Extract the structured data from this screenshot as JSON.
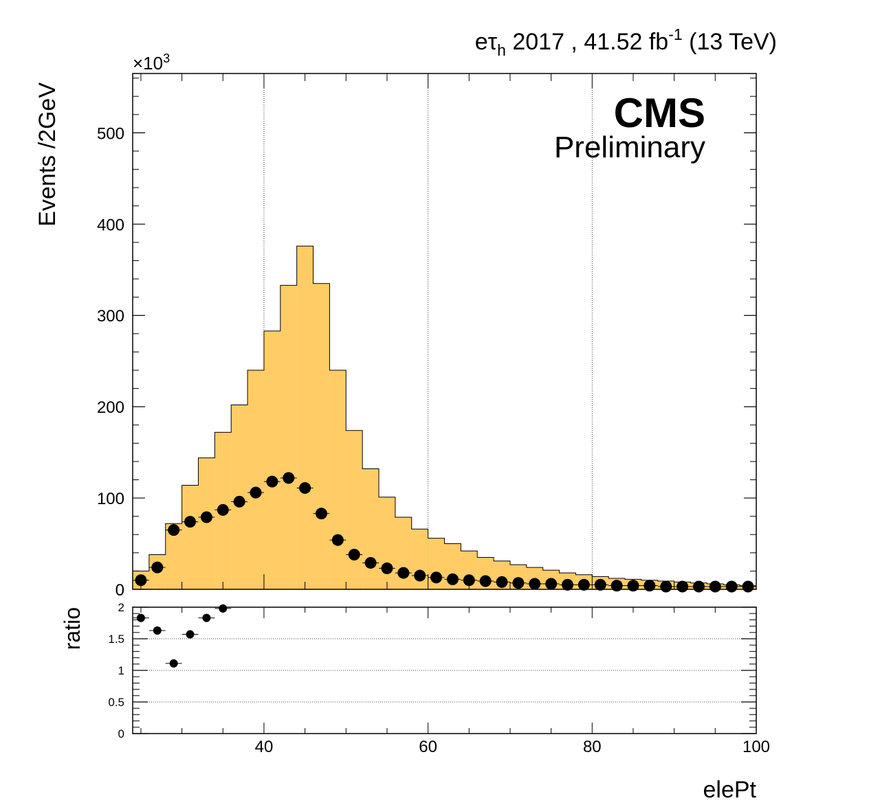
{
  "chart_data": [
    {
      "type": "bar",
      "panel": "main",
      "title_parts": {
        "channel_e": "e",
        "channel_tau": "τ",
        "channel_sub": "h",
        "year_lumi": " 2017 , 41.52 fb",
        "lumi_exp": "-1",
        "energy": " (13 TeV)"
      },
      "cms_label": "CMS",
      "cms_sublabel": "Preliminary",
      "xlabel": "elePt",
      "ylabel": "Events /2GeV",
      "y_multiplier_base": "×10",
      "y_multiplier_exp": "3",
      "xlim": [
        24,
        100
      ],
      "ylim": [
        0,
        565
      ],
      "x_ticks": [
        40,
        60,
        80,
        100
      ],
      "y_ticks": [
        0,
        100,
        200,
        300,
        400,
        500
      ],
      "y_tick_labels": [
        "0",
        "100",
        "200",
        "300",
        "400",
        "500"
      ],
      "x_grid": true,
      "y_grid": false,
      "bin_edges": [
        24,
        26,
        28,
        30,
        32,
        34,
        36,
        38,
        40,
        42,
        44,
        46,
        48,
        50,
        52,
        54,
        56,
        58,
        60,
        62,
        64,
        66,
        68,
        70,
        72,
        74,
        76,
        78,
        80,
        82,
        84,
        86,
        88,
        90,
        92,
        94,
        96,
        98,
        100
      ],
      "series": [
        {
          "kind": "stacked-histogram",
          "color": "#ffcc66",
          "values": [
            20,
            38,
            72,
            114,
            144,
            172,
            202,
            240,
            283,
            333,
            376,
            335,
            240,
            174,
            132,
            101,
            79,
            66,
            56,
            50,
            42,
            35,
            31,
            27,
            24,
            21,
            18,
            16,
            14,
            12,
            11,
            10,
            9,
            8,
            7,
            6,
            5,
            4
          ]
        },
        {
          "kind": "data-points",
          "color": "#000000",
          "values": [
            10,
            24,
            65,
            74,
            79,
            87,
            96,
            106,
            118,
            122,
            111,
            83,
            54,
            38,
            29,
            23,
            18,
            15,
            13,
            11,
            10,
            9,
            8,
            7,
            6,
            6,
            5,
            5,
            5,
            4,
            4,
            4,
            3,
            3,
            3,
            3,
            3,
            3
          ]
        }
      ]
    },
    {
      "type": "scatter",
      "panel": "ratio",
      "ylabel": "ratio",
      "xlim": [
        24,
        100
      ],
      "ylim": [
        0,
        2
      ],
      "x_ticks": [
        40,
        60,
        80,
        100
      ],
      "x_tick_labels": [
        "40",
        "60",
        "80",
        "100"
      ],
      "y_ticks": [
        0,
        0.5,
        1,
        1.5,
        2
      ],
      "y_tick_labels": [
        "0",
        "0.5",
        "1",
        "1.5",
        "2"
      ],
      "y_grid_lines": [
        0.5,
        1,
        1.5
      ],
      "points": {
        "x": [
          25,
          27,
          29,
          31,
          33,
          35
        ],
        "y": [
          1.83,
          1.63,
          1.11,
          1.57,
          1.83,
          1.98
        ]
      }
    }
  ]
}
